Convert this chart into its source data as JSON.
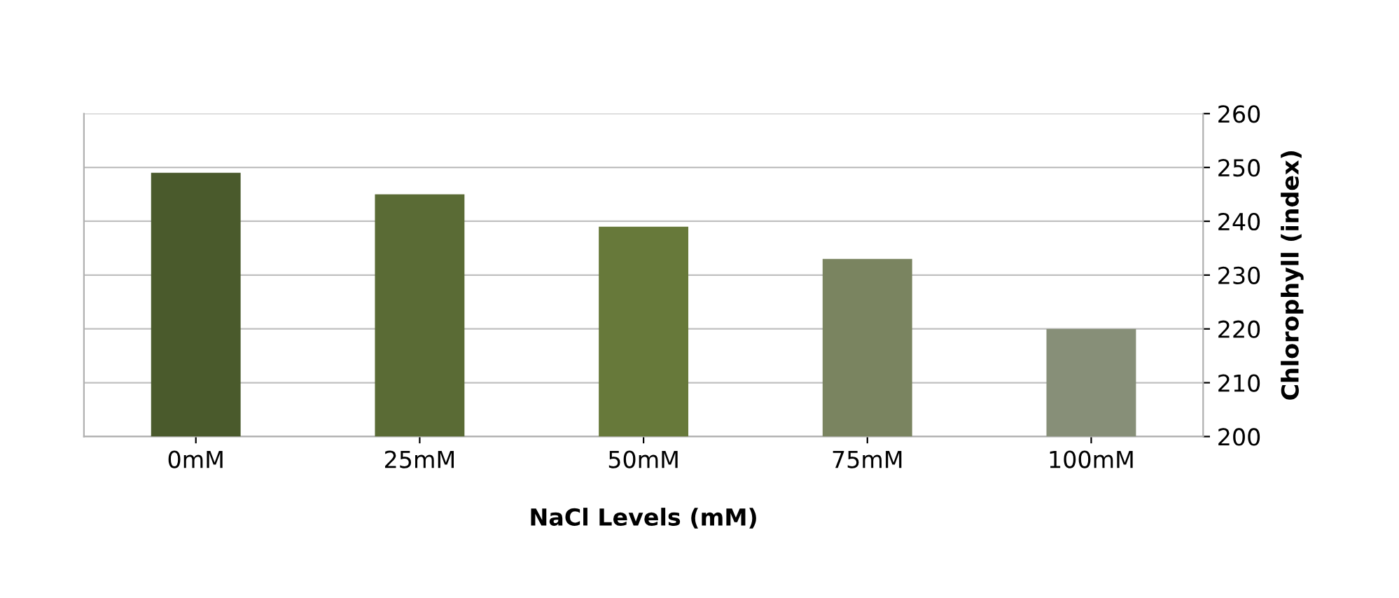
{
  "chart_data": {
    "type": "bar",
    "xlabel": "NaCl Levels (mM)",
    "ylabel": "Chlorophyll (index)",
    "categories": [
      "0mM",
      "25mM",
      "50mM",
      "75mM",
      "100mM"
    ],
    "values": [
      249,
      245,
      239,
      233,
      220
    ],
    "colors": [
      "#4a5a2c",
      "#5a6b35",
      "#67793a",
      "#7a8460",
      "#878f78"
    ],
    "ylim": [
      200,
      260
    ],
    "yticks": [
      200,
      210,
      220,
      230,
      240,
      250,
      260
    ],
    "grid": "y"
  }
}
